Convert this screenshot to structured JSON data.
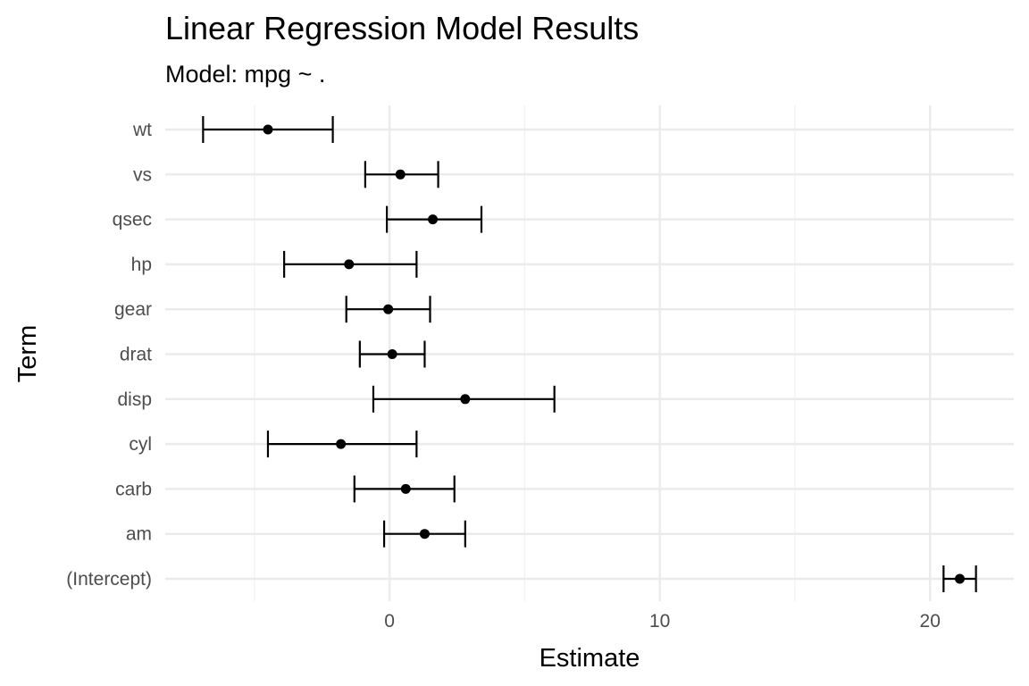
{
  "chart_data": {
    "type": "errorbar",
    "title": "Linear Regression Model Results",
    "subtitle": "Model: mpg ~ .",
    "xlabel": "Estimate",
    "ylabel": "Term",
    "xlim": [
      -8.3,
      23.1
    ],
    "x_ticks": [
      0,
      10,
      20
    ],
    "x_minor_ticks": [
      -5,
      5,
      15
    ],
    "grid": true,
    "terms": [
      "(Intercept)",
      "am",
      "carb",
      "cyl",
      "disp",
      "drat",
      "gear",
      "hp",
      "qsec",
      "vs",
      "wt"
    ],
    "estimate": [
      21.1,
      1.3,
      0.6,
      -1.8,
      2.8,
      0.1,
      -0.05,
      -1.5,
      1.6,
      0.4,
      -4.5
    ],
    "conf_low": [
      20.5,
      -0.2,
      -1.3,
      -4.5,
      -0.6,
      -1.1,
      -1.6,
      -3.9,
      -0.1,
      -0.9,
      -6.9
    ],
    "conf_high": [
      21.7,
      2.8,
      2.4,
      1.0,
      6.1,
      1.3,
      1.5,
      1.0,
      3.4,
      1.8,
      -2.1
    ],
    "colors": {
      "grid_major": "#ebebeb",
      "grid_minor": "#f3f3f3",
      "mark": "#000000",
      "tick_text": "#4d4d4d"
    }
  }
}
